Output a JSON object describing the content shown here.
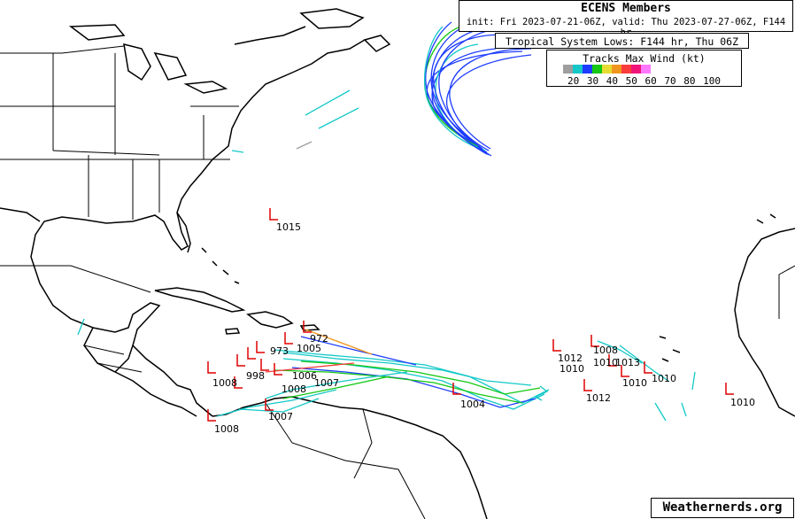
{
  "header": {
    "title": "ECENS Members",
    "subtitle": "init: Fri 2023-07-21-06Z, valid: Thu 2023-07-27-06Z, F144 hr"
  },
  "lows_label": "Tropical System Lows: F144 hr, Thu 06Z",
  "legend": {
    "title": "Tracks Max Wind (kt)",
    "colors": [
      "#9e9e9e",
      "#14c8c8",
      "#1e3cff",
      "#14c814",
      "#e6dc32",
      "#f0961e",
      "#fa3c3c",
      "#f01478",
      "#ff78ff"
    ],
    "labels": "20 30 40 50 60 70 80 100"
  },
  "pressure_labels": [
    "1015",
    "972",
    "1005",
    "973",
    "998",
    "1008",
    "1007",
    "1006",
    "1004",
    "1012",
    "1010",
    "1008",
    "1010",
    "1013",
    "1010",
    "1012",
    "1008",
    "1010",
    "1007",
    "1008",
    "1010"
  ],
  "credit": "Weathernerds.org"
}
